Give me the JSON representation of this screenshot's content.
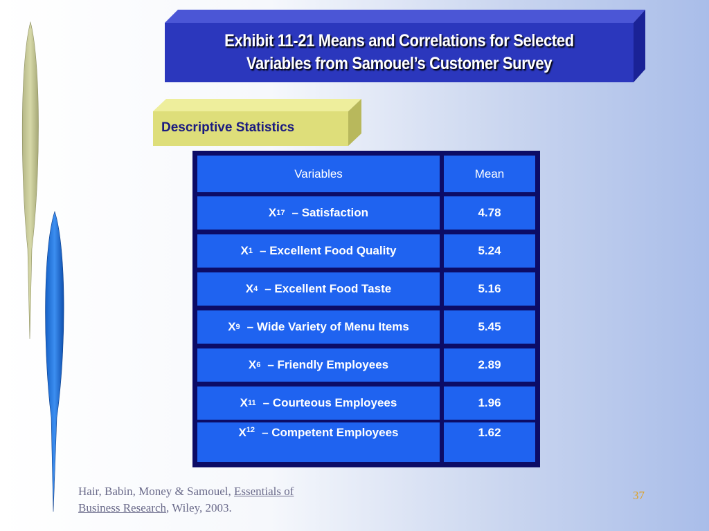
{
  "header": {
    "title_line1": "Exhibit 11-21  Means and Correlations for Selected",
    "title_line2": "Variables from Samouel’s Customer Survey"
  },
  "section_tab": "Descriptive Statistics",
  "table": {
    "columns": [
      "Variables",
      "Mean"
    ],
    "rows": [
      {
        "var": "X",
        "sub": "17",
        "label": "–  Satisfaction",
        "mean": "4.78"
      },
      {
        "var": "X",
        "sub": "1",
        "label": "–  Excellent Food Quality",
        "mean": "5.24"
      },
      {
        "var": "X",
        "sub": "4",
        "label": "–  Excellent Food Taste",
        "mean": "5.16"
      },
      {
        "var": "X",
        "sub": "9",
        "label": "–  Wide Variety of Menu Items",
        "mean": "5.45"
      },
      {
        "var": "X",
        "sub": "6",
        "label": "–  Friendly Employees",
        "mean": "2.89"
      },
      {
        "var": "X",
        "sub": "11",
        "label": "–  Courteous Employees",
        "mean": "1.96"
      },
      {
        "var": "X",
        "sub": "12",
        "label": "–  Competent Employees",
        "mean": "1.62"
      }
    ]
  },
  "footer": {
    "authors": "Hair, Babin, Money & Samouel, ",
    "book_title_part1": "Essentials of",
    "book_title_part2": "Business Research",
    "publisher": ", Wiley, 2003."
  },
  "page_number": "37",
  "colors": {
    "title_bg": "#2b37bd",
    "tab_bg": "#dede7a",
    "cell_bg": "#1f63f0",
    "grid": "#0c0c66",
    "page_number": "#e0a020"
  }
}
